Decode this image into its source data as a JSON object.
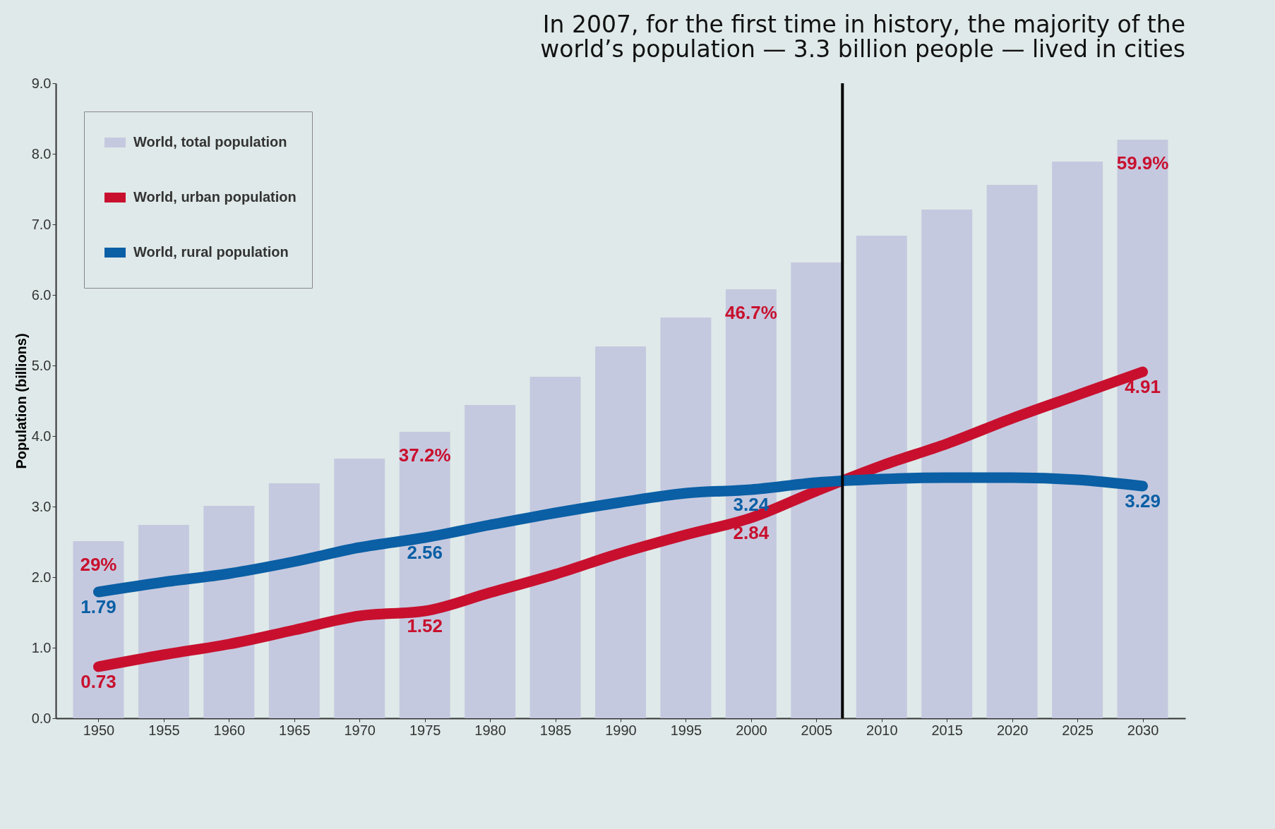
{
  "chart_data": {
    "type": "bar",
    "title": "In 2007, for the first time in history, the majority of the\nworld’s population — 3.3 billion people — lived in cities",
    "ylabel": "Population (billions)",
    "x": [
      1950,
      1955,
      1960,
      1965,
      1970,
      1975,
      1980,
      1985,
      1990,
      1995,
      2000,
      2005,
      2010,
      2015,
      2020,
      2025,
      2030
    ],
    "xlim": [
      1947,
      2033
    ],
    "xticks": [
      1950,
      1955,
      1960,
      1965,
      1970,
      1975,
      1980,
      1985,
      1990,
      1995,
      2000,
      2005,
      2010,
      2015,
      2020,
      2025,
      2030
    ],
    "ylim": [
      0,
      9
    ],
    "yticks": [
      {
        "value": 0,
        "label": "0.0"
      },
      {
        "value": 1,
        "label": "1.0"
      },
      {
        "value": 2,
        "label": "2.0"
      },
      {
        "value": 3,
        "label": "3.0"
      },
      {
        "value": 4,
        "label": "4.0"
      },
      {
        "value": 5,
        "label": "5.0"
      },
      {
        "value": 6,
        "label": "6.0"
      },
      {
        "value": 7,
        "label": "7.0"
      },
      {
        "value": 8,
        "label": "8.0"
      },
      {
        "value": 9,
        "label": "9.0"
      }
    ],
    "series": [
      {
        "name": "World, total population",
        "color": "#c5c9df",
        "values": [
          2.51,
          2.74,
          3.01,
          3.33,
          3.68,
          4.06,
          4.44,
          4.84,
          5.27,
          5.68,
          6.08,
          6.46,
          6.84,
          7.21,
          7.56,
          7.89,
          8.2
        ]
      },
      {
        "name": "World, urban population",
        "type": "line",
        "color": "#c8102e",
        "values": [
          0.73,
          0.9,
          1.05,
          1.25,
          1.45,
          1.52,
          1.78,
          2.04,
          2.34,
          2.6,
          2.84,
          3.22,
          3.58,
          3.89,
          4.25,
          4.58,
          4.91
        ],
        "value_labels": [
          "0.73",
          null,
          null,
          null,
          null,
          "1.52",
          null,
          null,
          null,
          null,
          "2.84",
          null,
          null,
          null,
          null,
          null,
          "4.91"
        ]
      },
      {
        "name": "World, rural population",
        "type": "line",
        "color": "#0a5fa5",
        "values": [
          1.79,
          1.93,
          2.05,
          2.22,
          2.42,
          2.56,
          2.74,
          2.91,
          3.06,
          3.19,
          3.24,
          3.34,
          3.39,
          3.41,
          3.41,
          3.38,
          3.29
        ],
        "value_labels": [
          "1.79",
          null,
          null,
          null,
          null,
          "2.56",
          null,
          null,
          null,
          null,
          "3.24",
          null,
          null,
          null,
          null,
          null,
          "3.29"
        ]
      }
    ],
    "annotations": [
      "29%",
      "37.2%",
      "46.7%",
      "59.9%"
    ],
    "ref_lines": [
      {
        "axis": "x",
        "value": 2007,
        "color": "#000000"
      }
    ],
    "legend": "top left",
    "grid": false
  }
}
